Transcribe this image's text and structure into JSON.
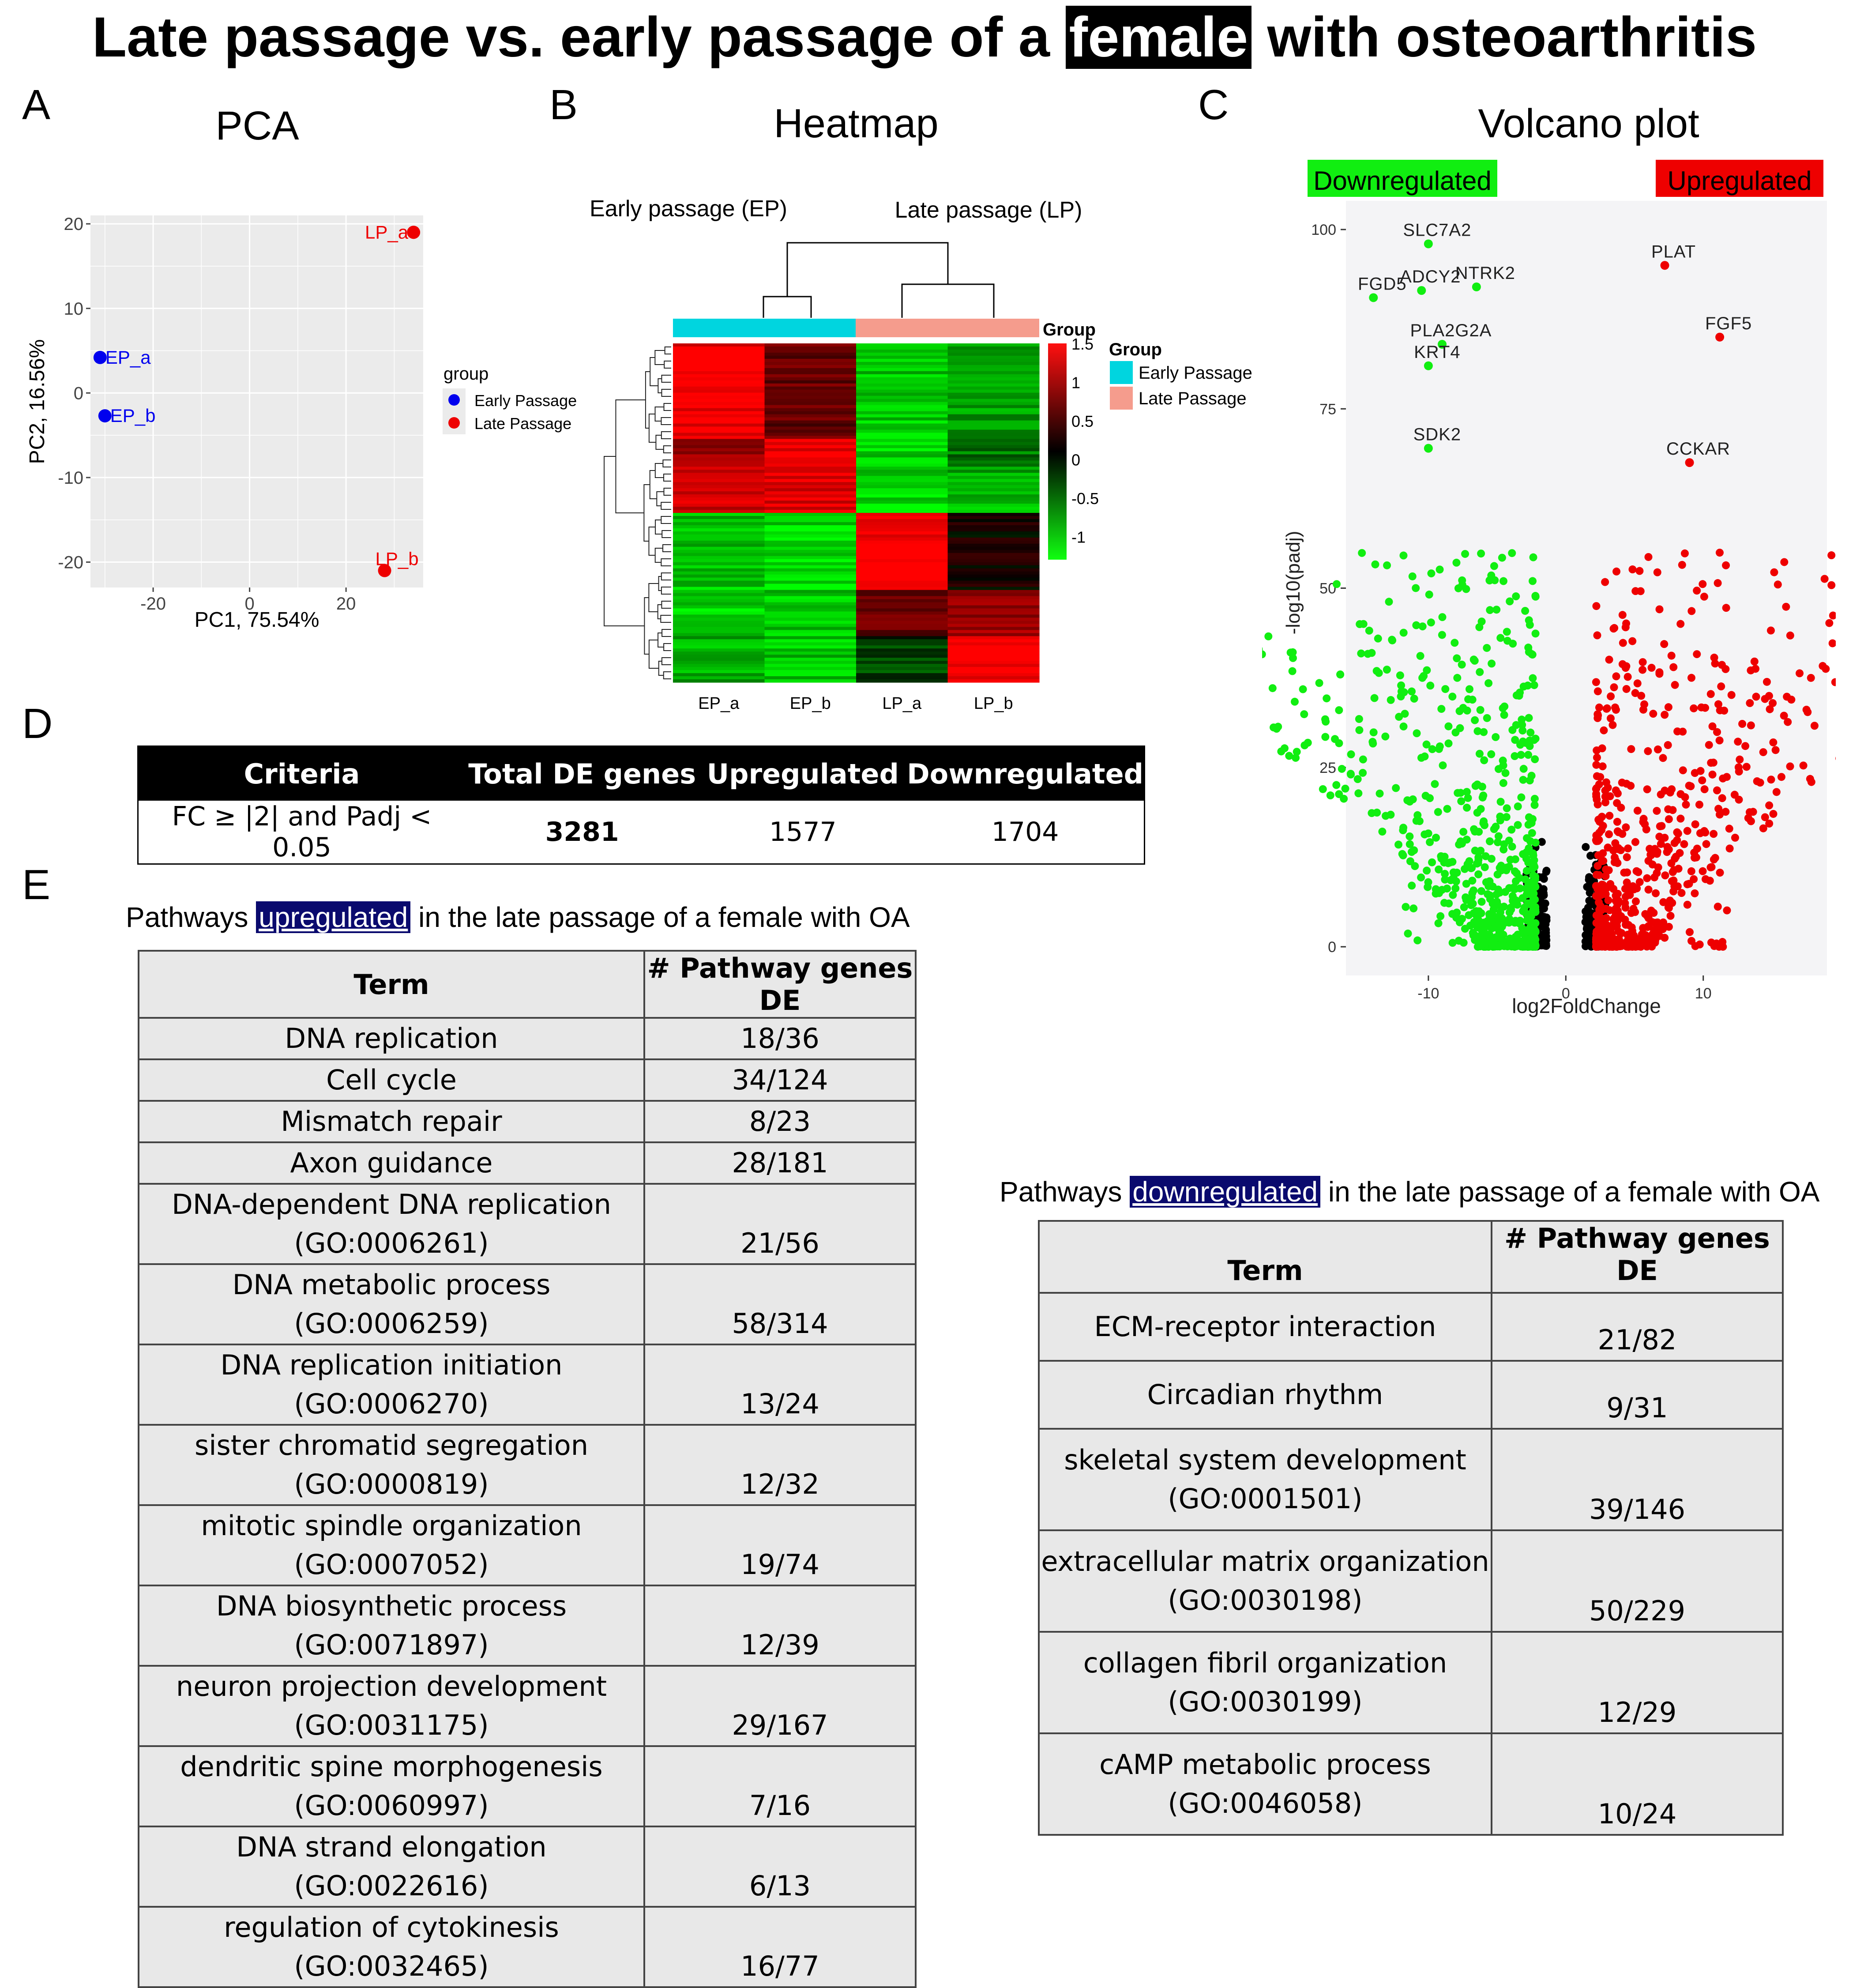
{
  "figure": {
    "title_before": "Late passage vs. early passage of a",
    "title_highlight": "female",
    "title_after": "with osteoarthritis",
    "panel_letters": [
      "A",
      "B",
      "C",
      "D",
      "E"
    ]
  },
  "colors": {
    "early": "#0000ee",
    "late": "#ee0000",
    "down": "#11ee11",
    "up": "#ee0000",
    "cyan": "#00d5df",
    "salmon": "#f59c8d"
  },
  "chart_data": [
    {
      "type": "scatter",
      "title": "PCA",
      "xlabel": "PC1, 75.54%",
      "ylabel": "PC2, 16.56%",
      "xlim": [
        -33,
        36
      ],
      "ylim": [
        -23,
        21
      ],
      "x_ticks": [
        "-20",
        "0",
        "20"
      ],
      "y_ticks": [
        "20",
        "10",
        "0",
        "-10",
        "-20"
      ],
      "legend_title": "group",
      "legend": [
        "Early Passage",
        "Late Passage"
      ],
      "points": [
        {
          "label": "EP_a",
          "x": -31,
          "y": 4.2,
          "group": "Early Passage"
        },
        {
          "label": "EP_b",
          "x": -30,
          "y": -2.7,
          "group": "Early Passage"
        },
        {
          "label": "LP_a",
          "x": 34,
          "y": 19,
          "group": "Late Passage"
        },
        {
          "label": "LP_b",
          "x": 28,
          "y": -21,
          "group": "Late Passage"
        }
      ]
    },
    {
      "type": "heatmap",
      "title": "Heatmap",
      "column_group_labels": [
        "Early passage (EP)",
        "Late passage (LP)"
      ],
      "columns": [
        "EP_a",
        "EP_b",
        "LP_a",
        "LP_b"
      ],
      "annotation_title": "Group",
      "colorbar_ticks": [
        "1.5",
        "1",
        "0.5",
        "0",
        "-0.5",
        "-1"
      ],
      "colorbar_range": [
        -1.3,
        1.5
      ],
      "legend_title": "Group",
      "legend": [
        "Early Passage",
        "Late Passage"
      ],
      "blocks": [
        {
          "rows": [
            0,
            0.28
          ],
          "values": [
            1.4,
            0.6,
            -1.0,
            -0.8
          ]
        },
        {
          "rows": [
            0.28,
            0.36
          ],
          "values": [
            0.9,
            1.4,
            -1.1,
            -0.6
          ]
        },
        {
          "rows": [
            0.36,
            0.5
          ],
          "values": [
            1.2,
            1.3,
            -1.1,
            -0.9
          ]
        },
        {
          "rows": [
            0.5,
            0.73
          ],
          "values": [
            -1.0,
            -1.1,
            1.5,
            0.1
          ]
        },
        {
          "rows": [
            0.73,
            0.86
          ],
          "values": [
            -1.1,
            -1.0,
            0.6,
            0.9
          ]
        },
        {
          "rows": [
            0.86,
            1.0
          ],
          "values": [
            -0.9,
            -1.0,
            -0.3,
            1.5
          ]
        }
      ]
    },
    {
      "type": "scatter",
      "title": "Volcano plot",
      "xlabel": "log2FoldChange",
      "ylabel": "-log10(padj)",
      "xlim": [
        -16,
        19
      ],
      "ylim": [
        -4,
        104
      ],
      "x_ticks": [
        "-10",
        "0",
        "10"
      ],
      "y_ticks": [
        "100",
        "75",
        "50",
        "25",
        "0"
      ],
      "legend": [
        "Downregulated",
        "Upregulated"
      ],
      "labeled_points": [
        {
          "label": "SLC7A2",
          "x": -10,
          "y": 98,
          "dir": "down"
        },
        {
          "label": "ADCY2",
          "x": -10.5,
          "y": 91.5,
          "dir": "down"
        },
        {
          "label": "NTRK2",
          "x": -6.5,
          "y": 92,
          "dir": "down"
        },
        {
          "label": "FGD5",
          "x": -14,
          "y": 90.5,
          "dir": "down"
        },
        {
          "label": "PLA2G2A",
          "x": -9,
          "y": 84,
          "dir": "down"
        },
        {
          "label": "KRT4",
          "x": -10,
          "y": 81,
          "dir": "down"
        },
        {
          "label": "SDK2",
          "x": -10,
          "y": 69.5,
          "dir": "down"
        },
        {
          "label": "PLAT",
          "x": 7.2,
          "y": 95,
          "dir": "up"
        },
        {
          "label": "FGF5",
          "x": 11.2,
          "y": 85,
          "dir": "up"
        },
        {
          "label": "CCKAR",
          "x": 9,
          "y": 67.5,
          "dir": "up"
        }
      ],
      "point_counts": {
        "down": 1704,
        "up": 1577
      }
    }
  ],
  "summary_table": {
    "headers": [
      "Criteria",
      "Total DE genes",
      "Upregulated",
      "Downregulated"
    ],
    "row": [
      "FC ≥ |2| and Padj < 0.05",
      "3281",
      "1577",
      "1704"
    ]
  },
  "up_caption": {
    "before": "Pathways",
    "highlight": "upregulated",
    "after": "in the late passage of a female with OA"
  },
  "down_caption": {
    "before": "Pathways",
    "highlight": "downregulated",
    "after": "in the late passage of a female with OA"
  },
  "up_table": {
    "headers": [
      "Term",
      "# Pathway genes DE"
    ],
    "rows": [
      {
        "term": "DNA replication",
        "term2": "",
        "de": "18/36"
      },
      {
        "term": "Cell cycle",
        "term2": "",
        "de": "34/124"
      },
      {
        "term": "Mismatch repair",
        "term2": "",
        "de": "8/23"
      },
      {
        "term": "Axon guidance",
        "term2": "",
        "de": "28/181"
      },
      {
        "term": "DNA-dependent DNA replication",
        "term2": "(GO:0006261)",
        "de": "21/56"
      },
      {
        "term": "DNA metabolic process (GO:0006259)",
        "term2": "",
        "de": "58/314"
      },
      {
        "term": "DNA replication initiation",
        "term2": "(GO:0006270)",
        "de": "13/24"
      },
      {
        "term": "sister chromatid segregation",
        "term2": "(GO:0000819)",
        "de": "12/32"
      },
      {
        "term": "mitotic spindle organization",
        "term2": "(GO:0007052)",
        "de": "19/74"
      },
      {
        "term": "DNA biosynthetic process",
        "term2": "(GO:0071897)",
        "de": "12/39"
      },
      {
        "term": "neuron projection development",
        "term2": "(GO:0031175)",
        "de": "29/167"
      },
      {
        "term": "dendritic spine morphogenesis",
        "term2": "(GO:0060997)",
        "de": "7/16"
      },
      {
        "term": "DNA strand elongation (GO:0022616)",
        "term2": "",
        "de": "6/13"
      },
      {
        "term": "regulation of cytokinesis",
        "term2": "(GO:0032465)",
        "de": "16/77"
      }
    ]
  },
  "down_table": {
    "headers": [
      "Term",
      "# Pathway genes DE"
    ],
    "rows": [
      {
        "term": "ECM-receptor interaction",
        "term2": "",
        "de": "21/82"
      },
      {
        "term": "Circadian rhythm",
        "term2": "",
        "de": "9/31"
      },
      {
        "term": "skeletal system development",
        "term2": "(GO:0001501)",
        "de": "39/146"
      },
      {
        "term": "extracellular matrix organization",
        "term2": "(GO:0030198)",
        "de": "50/229"
      },
      {
        "term": "collagen fibril organization",
        "term2": "(GO:0030199)",
        "de": "12/29"
      },
      {
        "term": "cAMP metabolic process",
        "term2": "(GO:0046058)",
        "de": "10/24"
      }
    ]
  }
}
